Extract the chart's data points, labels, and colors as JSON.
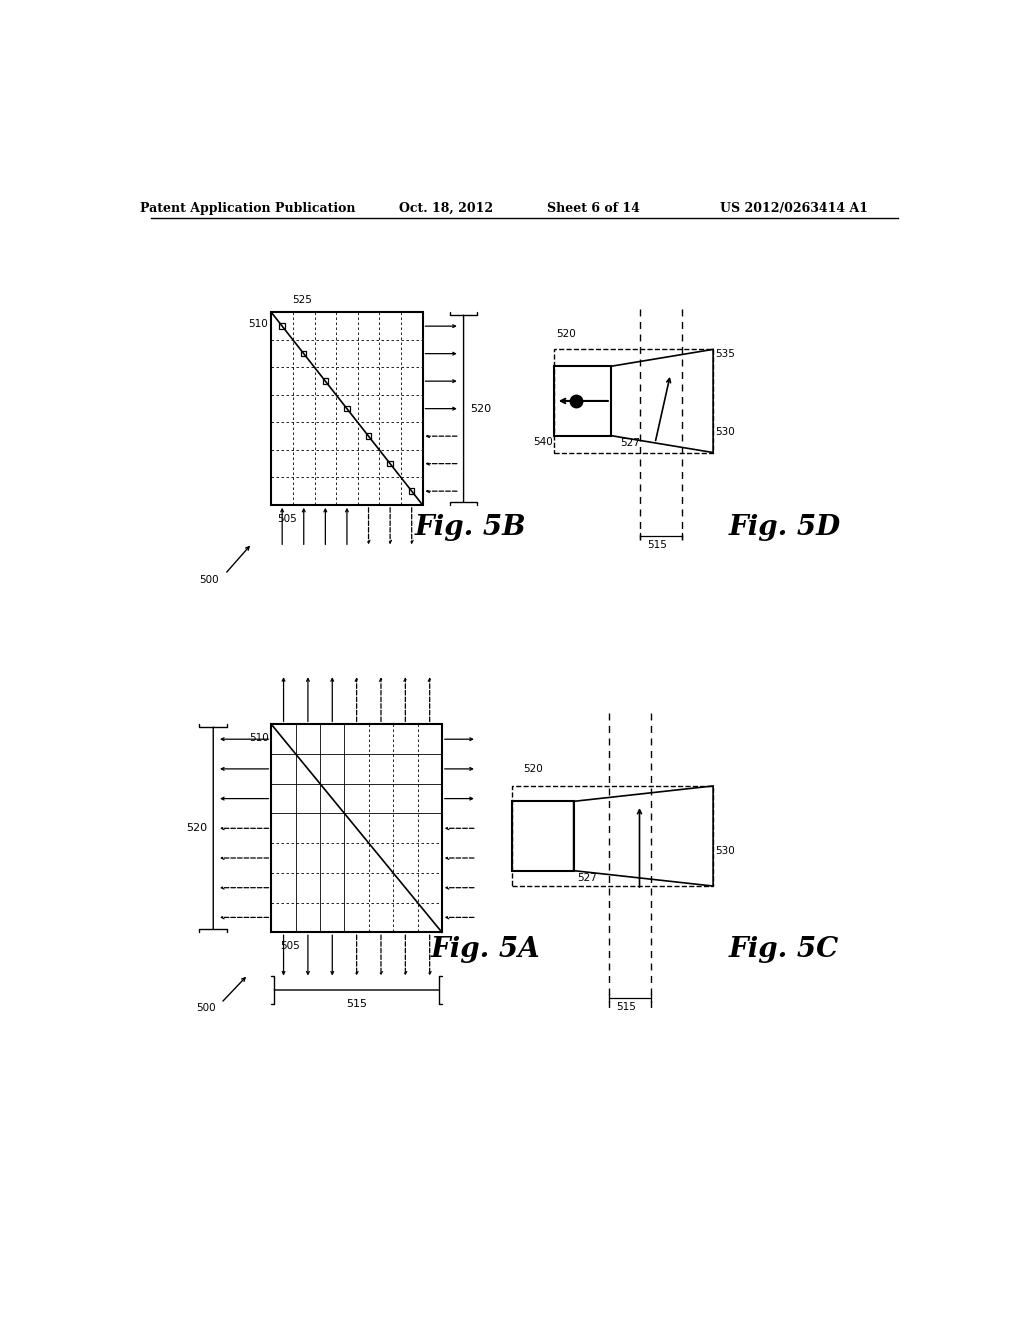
{
  "bg_color": "#ffffff",
  "header_text": "Patent Application Publication",
  "header_date": "Oct. 18, 2012",
  "header_sheet": "Sheet 6 of 14",
  "header_patent": "US 2012/0263414 A1",
  "fig5B_label": "Fig. 5B",
  "fig5D_label": "Fig. 5D",
  "fig5A_label": "Fig. 5A",
  "fig5C_label": "Fig. 5C",
  "lc": "#000000",
  "tc": "#000000"
}
